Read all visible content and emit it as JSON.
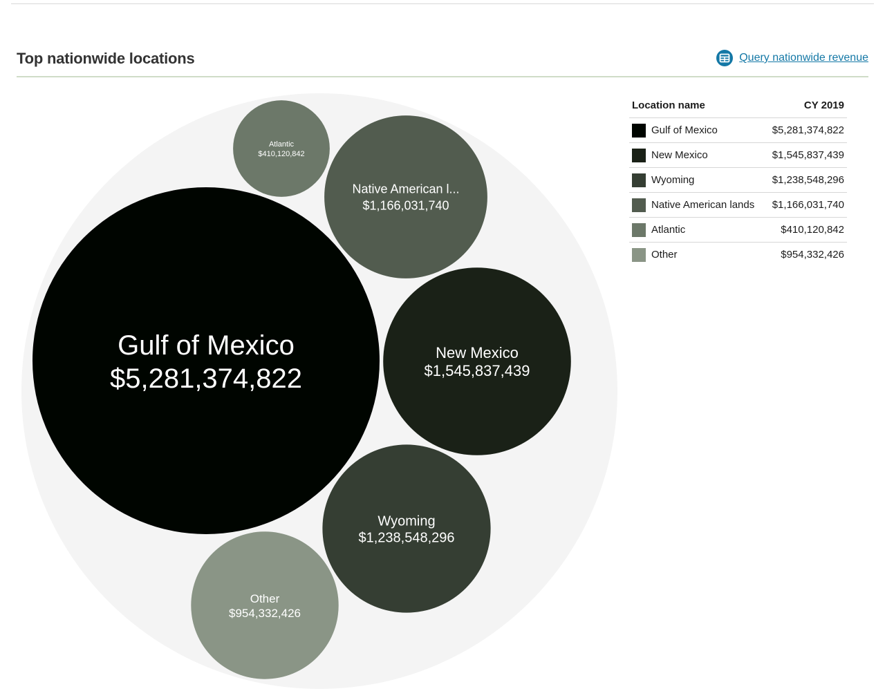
{
  "header": {
    "title": "Top nationwide locations",
    "query_link": "Query nationwide revenue",
    "query_icon": "table-icon"
  },
  "table": {
    "col_name": "Location name",
    "col_value": "CY 2019"
  },
  "chart_data": {
    "type": "bubble",
    "title": "",
    "series": [
      {
        "name": "Gulf of Mexico",
        "label": "Gulf of Mexico",
        "value": 5281374822,
        "display": "$5,281,374,822",
        "color": "#000500"
      },
      {
        "name": "New Mexico",
        "label": "New Mexico",
        "value": 1545837439,
        "display": "$1,545,837,439",
        "color": "#1a2117"
      },
      {
        "name": "Wyoming",
        "label": "Wyoming",
        "value": 1238548296,
        "display": "$1,238,548,296",
        "color": "#353e33"
      },
      {
        "name": "Native American lands",
        "label": "Native American l...",
        "value": 1166031740,
        "display": "$1,166,031,740",
        "color": "#525c4f"
      },
      {
        "name": "Atlantic",
        "label": "Atlantic",
        "value": 410120842,
        "display": "$410,120,842",
        "color": "#6c7869"
      },
      {
        "name": "Other",
        "label": "Other",
        "value": 954332426,
        "display": "$954,332,426",
        "color": "#8a9586"
      }
    ],
    "container_color": "#f4f4f4"
  }
}
